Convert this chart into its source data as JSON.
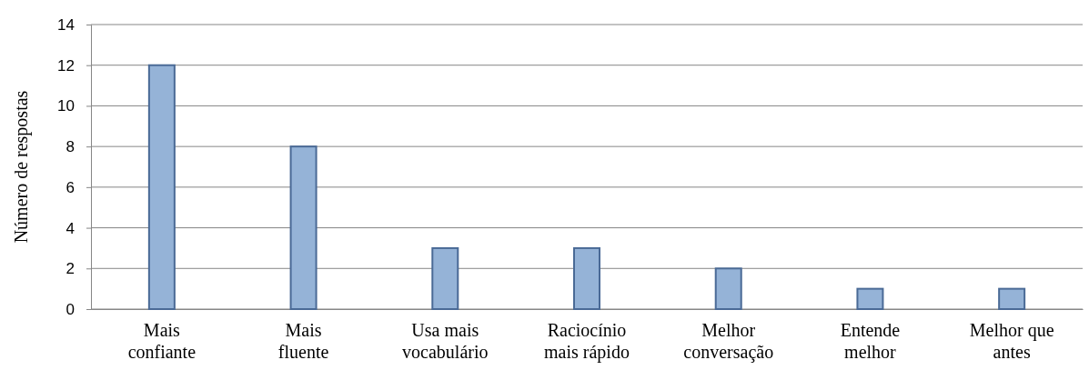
{
  "chart_data": {
    "type": "bar",
    "ylabel": "Número de respostas",
    "categories": [
      "Mais\nconfiante",
      "Mais\nfluente",
      "Usa mais\nvocabulário",
      "Raciocínio\nmais rápido",
      "Melhor\nconversação",
      "Entende\nmelhor",
      "Melhor que\nantes"
    ],
    "values": [
      12,
      8,
      3,
      3,
      2,
      1,
      1
    ],
    "color": "#95b3d7",
    "ylim": [
      0,
      14
    ],
    "yticks": [
      0,
      2,
      4,
      6,
      8,
      10,
      12,
      14
    ],
    "grid": "y"
  }
}
